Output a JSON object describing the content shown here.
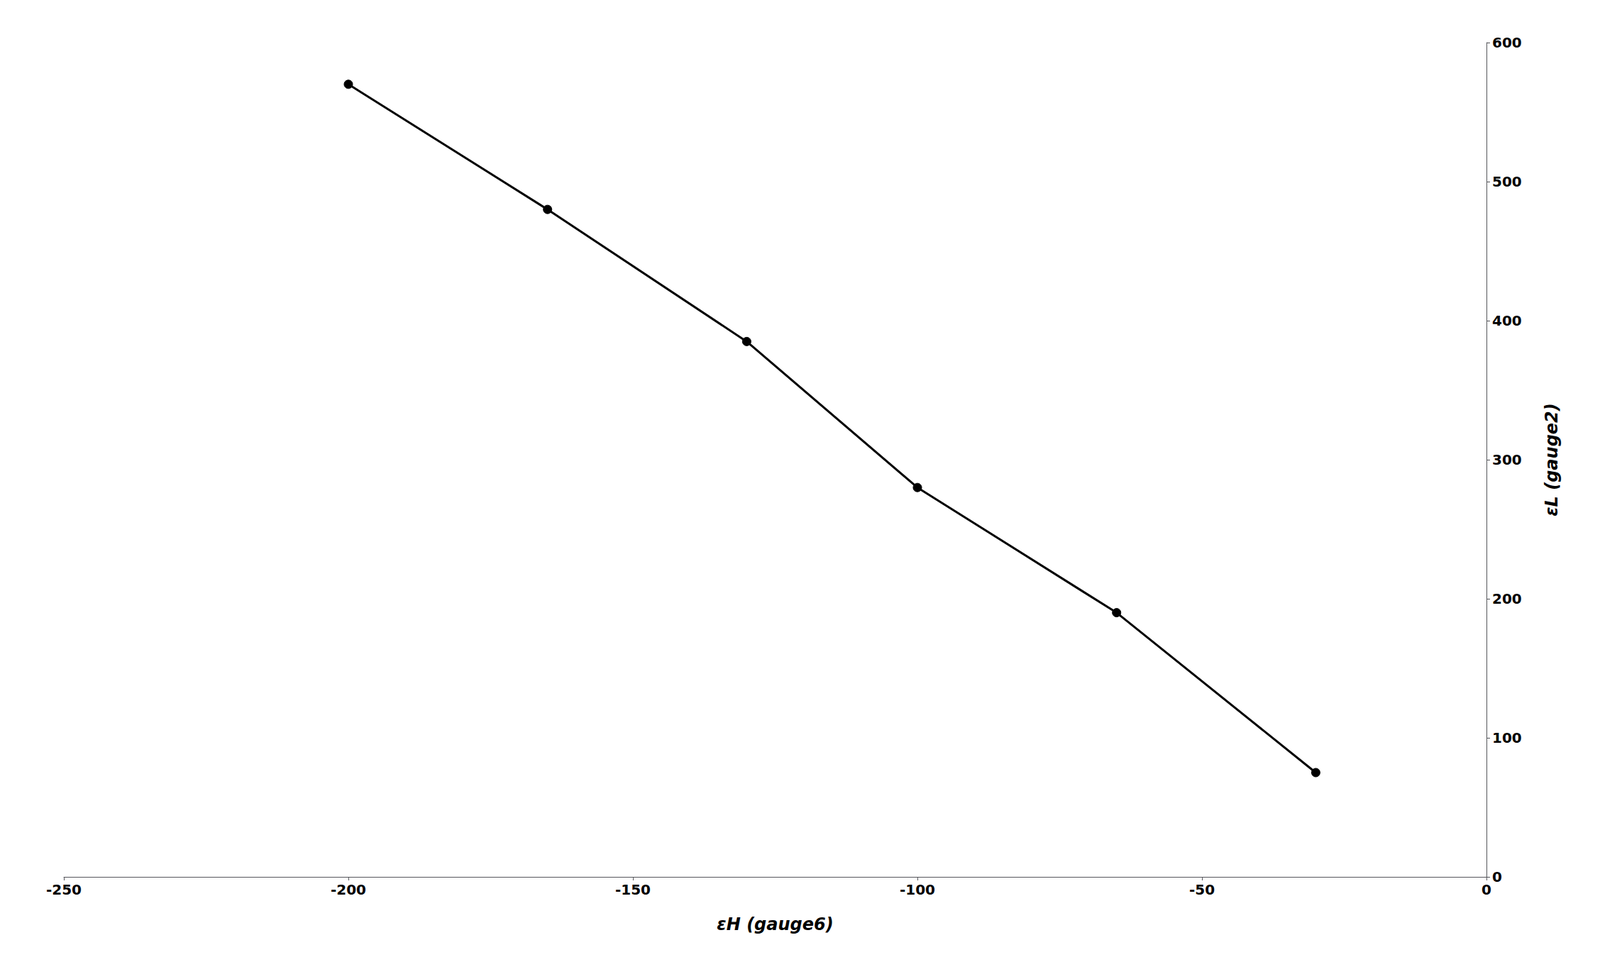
{
  "chart_data": {
    "type": "line",
    "x": [
      -200,
      -165,
      -130,
      -100,
      -65,
      -30
    ],
    "values": [
      570,
      480,
      385,
      280,
      190,
      75
    ],
    "xlabel": "εH (gauge6)",
    "ylabel": "εL (gauge2)",
    "xlim": [
      -250,
      0
    ],
    "ylim": [
      0,
      600
    ],
    "xticks": [
      -250,
      -200,
      -150,
      -100,
      -50,
      0
    ],
    "yticks": [
      0,
      100,
      200,
      300,
      400,
      500,
      600
    ],
    "color": "#000000",
    "marker": "circle",
    "grid": false
  }
}
